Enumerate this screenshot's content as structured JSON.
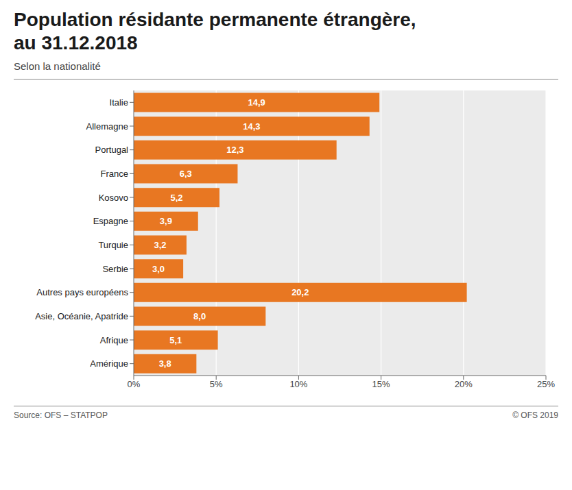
{
  "chart_data": {
    "type": "bar",
    "orientation": "horizontal",
    "title": "Population résidante permanente étrangère,\nau 31.12.2018",
    "subtitle": "Selon la nationalité",
    "annotations": [
      "Source: OFS – STATPOP",
      "© OFS 2019"
    ],
    "categories": [
      "Italie",
      "Allemagne",
      "Portugal",
      "France",
      "Kosovo",
      "Espagne",
      "Turquie",
      "Serbie",
      "Autres pays européens",
      "Asie, Océanie, Apatride",
      "Afrique",
      "Amérique"
    ],
    "values": [
      14.9,
      14.3,
      12.3,
      6.3,
      5.2,
      3.9,
      3.2,
      3.0,
      20.2,
      8.0,
      5.1,
      3.8
    ],
    "value_labels": [
      "14,9",
      "14,3",
      "12,3",
      "6,3",
      "5,2",
      "3,9",
      "3,2",
      "3,0",
      "20,2",
      "8,0",
      "5,1",
      "3,8"
    ],
    "data_labels": true,
    "color": "#E87722",
    "xlim": [
      0,
      25
    ],
    "xticks": [
      {
        "value": 0,
        "label": "0%"
      },
      {
        "value": 5,
        "label": "5%"
      },
      {
        "value": 10,
        "label": "10%"
      },
      {
        "value": 15,
        "label": "15%"
      },
      {
        "value": 20,
        "label": "20%"
      },
      {
        "value": 25,
        "label": "25%"
      }
    ],
    "grid": true
  }
}
